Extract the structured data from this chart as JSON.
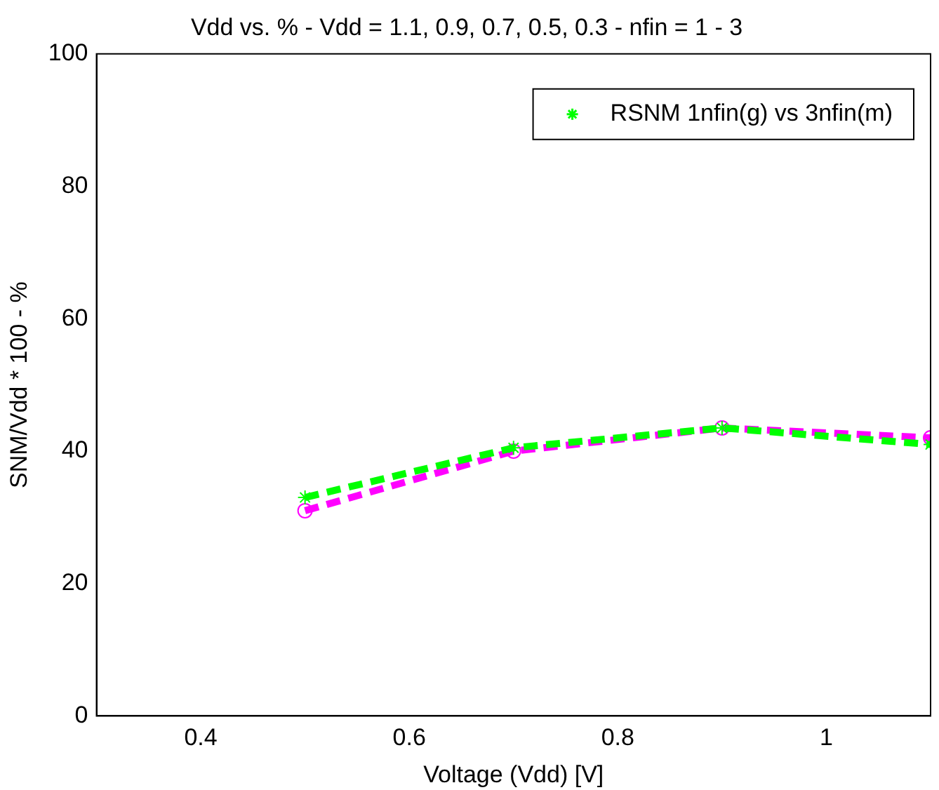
{
  "chart_data": {
    "type": "line",
    "title": "Vdd vs. % - Vdd = 1.1, 0.9, 0.7, 0.5, 0.3 - nfin = 1 - 3",
    "xlabel": "Voltage (Vdd) [V]",
    "ylabel": "SNM/Vdd * 100 - %",
    "x": [
      0.5,
      0.7,
      0.9,
      1.1
    ],
    "series": [
      {
        "name": "RSNM 1nfin(g) vs 3nfin(m)",
        "color": "#00ff00",
        "values": [
          33,
          40.5,
          43.5,
          41
        ],
        "marker": "cross",
        "line_style": "dashed"
      },
      {
        "color": "#ff00ff",
        "values": [
          31,
          40,
          43.5,
          42
        ],
        "marker": "circle",
        "line_style": "dashed"
      }
    ],
    "xlim": [
      0.3,
      1.1
    ],
    "xticks": [
      0.4,
      0.6,
      0.8,
      1
    ],
    "ylim": [
      0,
      100
    ],
    "yticks": [
      0,
      20,
      40,
      60,
      80,
      100
    ],
    "grid": false,
    "legend": "top right"
  }
}
